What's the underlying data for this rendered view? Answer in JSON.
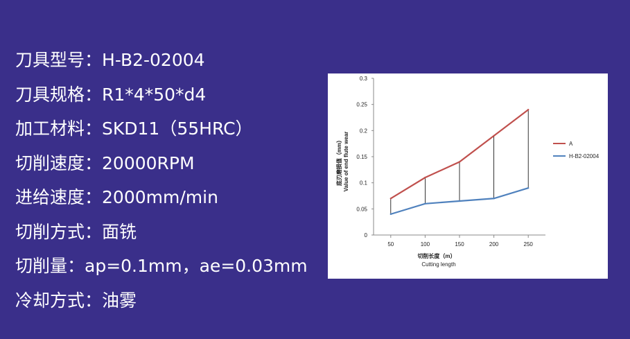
{
  "specs": [
    {
      "label": "刀具型号：",
      "value": "H-B2-02004"
    },
    {
      "label": "刀具规格：",
      "value": "R1*4*50*d4"
    },
    {
      "label": "加工材料：",
      "value": "SKD11（55HRC）"
    },
    {
      "label": "切削速度：",
      "value": "20000RPM"
    },
    {
      "label": "进给速度：",
      "value": "2000mm/min"
    },
    {
      "label": "切削方式：",
      "value": "面铣"
    },
    {
      "label": "切削量：",
      "value": "ap=0.1mm，ae=0.03mm"
    },
    {
      "label": "冷却方式：",
      "value": "油雾"
    }
  ],
  "chart_data": {
    "type": "line",
    "x": [
      50,
      100,
      150,
      200,
      250
    ],
    "series": [
      {
        "name": "A",
        "values": [
          0.07,
          0.11,
          0.14,
          0.19,
          0.24
        ],
        "color": "#c0504d"
      },
      {
        "name": "H-B2-02004",
        "values": [
          0.04,
          0.06,
          0.065,
          0.07,
          0.09
        ],
        "color": "#4f81bd"
      }
    ],
    "xlabel": "切削长度（m）",
    "xlabel_en": "Cutting length",
    "ylabel": "底刃磨损值（mm）",
    "ylabel_en": "Value of end flute wear",
    "ylim": [
      0,
      0.3
    ],
    "yticks": [
      "0",
      "0.05",
      "0.1",
      "0.15",
      "0.2",
      "0.25",
      "0.3"
    ],
    "xticks": [
      "50",
      "100",
      "150",
      "200",
      "250"
    ],
    "legend_position": "right",
    "grid": false
  }
}
